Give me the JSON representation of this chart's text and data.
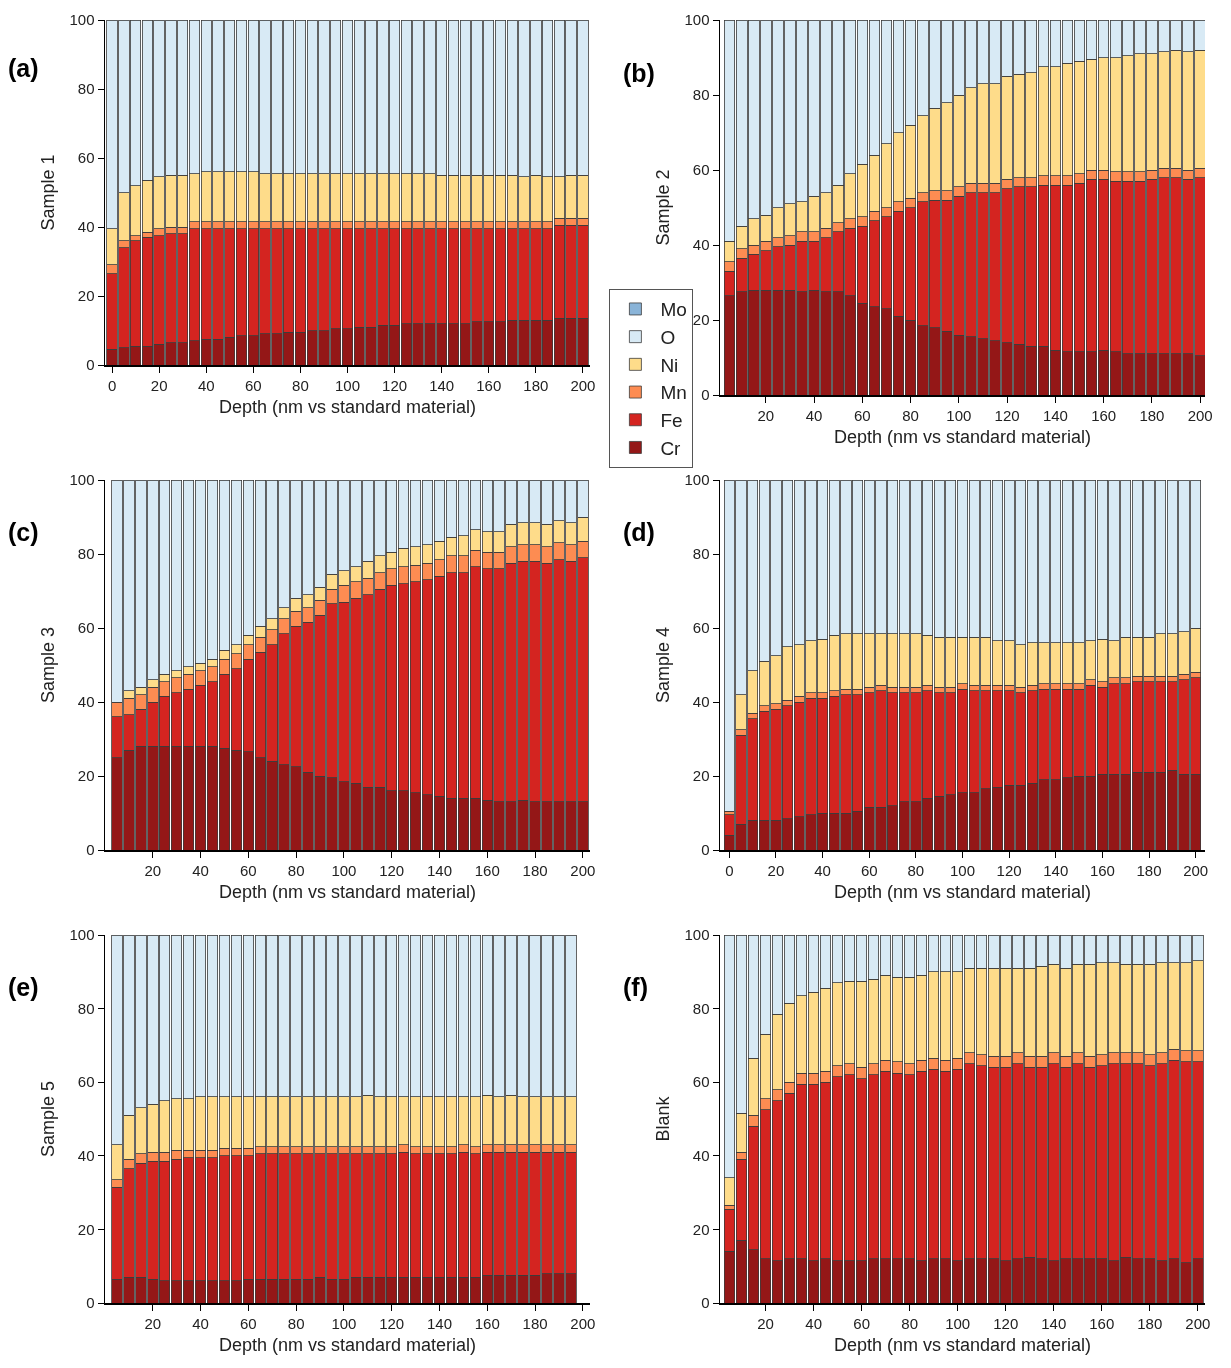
{
  "chart_data": [
    {
      "type": "bar",
      "stacked": true,
      "title": "(a)",
      "ylabel": "Sample 1",
      "xlabel": "Depth (nm vs standard material)",
      "legend": "right",
      "xlim": [
        -3,
        203
      ],
      "xticks": [
        0,
        20,
        40,
        60,
        80,
        100,
        120,
        140,
        160,
        180,
        200
      ],
      "ylim": [
        0,
        100
      ],
      "yticks": [
        0,
        20,
        40,
        60,
        80,
        100
      ],
      "x": [
        0,
        5,
        10,
        15,
        20,
        25,
        30,
        35,
        40,
        45,
        50,
        55,
        60,
        65,
        70,
        75,
        80,
        85,
        90,
        95,
        100,
        105,
        110,
        115,
        120,
        125,
        130,
        135,
        140,
        145,
        150,
        155,
        160,
        165,
        170,
        175,
        180,
        185,
        190,
        195,
        200
      ],
      "series": [
        {
          "name": "Cr",
          "color": "#941717",
          "values": [
            4.5,
            5,
            5.5,
            5.5,
            6,
            6.5,
            6.5,
            7,
            7.5,
            7.5,
            8,
            8.5,
            8.5,
            9,
            9,
            9.5,
            9.5,
            10,
            10,
            10.5,
            10.5,
            11,
            11,
            11.5,
            11.5,
            12,
            12,
            12,
            12,
            12,
            12,
            12.5,
            12.5,
            12.5,
            13,
            13,
            13,
            13,
            13.5,
            13.5,
            13.5
          ]
        },
        {
          "name": "Fe",
          "color": "#d42420",
          "values": [
            22,
            29,
            30.5,
            31.5,
            31.5,
            31.5,
            31.5,
            32.5,
            32,
            32,
            31.5,
            31,
            31,
            30.5,
            30.5,
            30,
            30,
            29.5,
            29.5,
            29,
            29,
            28.5,
            28.5,
            28,
            28,
            27.5,
            27.5,
            27.5,
            27.5,
            27.5,
            27.5,
            27,
            27,
            27,
            26.5,
            26.5,
            26.5,
            26.5,
            27,
            27,
            27
          ]
        },
        {
          "name": "Mn",
          "color": "#fd8c52",
          "values": [
            2.5,
            2,
            1.5,
            1.5,
            2,
            2,
            2,
            2,
            2,
            2,
            2,
            2,
            2,
            2,
            2,
            2,
            2,
            2,
            2,
            2,
            2,
            2,
            2,
            2,
            2,
            2,
            2,
            2,
            2,
            2,
            2,
            2,
            2,
            2,
            2,
            2,
            2,
            2,
            2,
            2,
            2
          ]
        },
        {
          "name": "Ni",
          "color": "#fedc8a",
          "values": [
            10.5,
            14,
            14.5,
            15,
            15,
            15,
            15,
            14,
            14.5,
            14.5,
            14.5,
            14.5,
            14.5,
            14,
            14,
            14,
            14,
            14,
            14,
            14,
            14,
            14,
            14,
            14,
            14,
            14,
            14,
            14,
            13.5,
            13.5,
            13.5,
            13.5,
            13.5,
            13.5,
            13.5,
            13,
            13.5,
            13,
            12,
            12.5,
            12.5
          ]
        },
        {
          "name": "O",
          "color": "#d8eaf5",
          "values": [
            60.5,
            50,
            48,
            46.5,
            45.5,
            45,
            45,
            44.5,
            44,
            44,
            44,
            44,
            44,
            44.5,
            44.5,
            44.5,
            44.5,
            44.5,
            44.5,
            44.5,
            44.5,
            44.5,
            44.5,
            44.5,
            44.5,
            44.5,
            44.5,
            44.5,
            45,
            45,
            45,
            45,
            45,
            45,
            45,
            45.5,
            45,
            45.5,
            45.5,
            45,
            45
          ]
        },
        {
          "name": "Mo",
          "color": "#8ab4d8",
          "values": [
            null,
            null,
            null,
            null,
            null,
            null,
            null,
            null,
            null,
            null,
            null,
            null,
            null,
            null,
            null,
            null,
            null,
            null,
            null,
            null,
            null,
            null,
            null,
            null,
            null,
            null,
            null,
            null,
            null,
            null,
            null,
            null,
            null,
            null,
            null,
            null,
            null,
            null,
            null,
            null,
            null
          ]
        }
      ]
    },
    {
      "type": "bar",
      "stacked": true,
      "title": "(b)",
      "ylabel": "Sample 2",
      "xlabel": "Depth (nm vs standard material)",
      "xlim": [
        1,
        202
      ],
      "xticks": [
        20,
        40,
        60,
        80,
        100,
        120,
        140,
        160,
        180,
        200
      ],
      "ylim": [
        0,
        100
      ],
      "yticks": [
        0,
        20,
        40,
        60,
        80,
        100
      ],
      "x": [
        5,
        10,
        15,
        20,
        25,
        30,
        35,
        40,
        45,
        50,
        55,
        60,
        65,
        70,
        75,
        80,
        85,
        90,
        95,
        100,
        105,
        110,
        115,
        120,
        125,
        130,
        135,
        140,
        145,
        150,
        155,
        160,
        165,
        170,
        175,
        180,
        185,
        190,
        195,
        200
      ],
      "series": [
        {
          "color": "#941717",
          "values": [
            26.5,
            27.5,
            28,
            28,
            28,
            28,
            27.5,
            28,
            27.5,
            27.5,
            26.5,
            24.5,
            23.5,
            23,
            21,
            20,
            18.5,
            18,
            17,
            16,
            15.5,
            15,
            14.5,
            14,
            13.5,
            13,
            13,
            12,
            11.5,
            11.5,
            11.5,
            12,
            11.5,
            11,
            11,
            11,
            11,
            11,
            11,
            10.5
          ]
        },
        {
          "color": "#d42420",
          "values": [
            6.5,
            9,
            9.5,
            10.5,
            11.5,
            12,
            13.5,
            13,
            14.5,
            16,
            18,
            20.5,
            23,
            24.5,
            28,
            30,
            33,
            34,
            35,
            37,
            38.5,
            39,
            39.5,
            41,
            42,
            42.5,
            43,
            44,
            44.5,
            45,
            46,
            45.5,
            45.5,
            46,
            46,
            46.5,
            47,
            47,
            46.5,
            47.5
          ]
        },
        {
          "color": "#fd8c52",
          "values": [
            2.5,
            2.5,
            2.5,
            2.5,
            2.5,
            2.5,
            2.5,
            2.5,
            2.5,
            2.5,
            2.5,
            2.5,
            2.5,
            2.5,
            2.5,
            2.5,
            2.5,
            2.5,
            2.5,
            2.5,
            2.5,
            2.5,
            2.5,
            2.5,
            2.5,
            2.5,
            2.5,
            2.5,
            2.5,
            2.5,
            2.5,
            2.5,
            2.5,
            2.5,
            2.5,
            2.5,
            2.5,
            2.5,
            2.5,
            2.5
          ]
        },
        {
          "color": "#fedc8a",
          "values": [
            5.5,
            6,
            7,
            7,
            8,
            8.5,
            8,
            9.5,
            9.5,
            10,
            12,
            14,
            15,
            17,
            18.5,
            19.5,
            20.5,
            22,
            23.5,
            24.5,
            25.5,
            26.5,
            26.5,
            27.5,
            27.5,
            28,
            29,
            29,
            30,
            30,
            29.5,
            30,
            30.5,
            31,
            31.5,
            31,
            31,
            31.5,
            31.5,
            31.5
          ]
        },
        {
          "color": "#d8eaf5",
          "values": [
            59,
            55,
            53,
            52,
            50,
            49,
            48.5,
            47,
            46,
            44,
            41,
            38.5,
            36,
            33,
            30,
            28,
            25.5,
            23.5,
            22,
            20,
            18,
            17,
            17,
            15,
            14.5,
            14,
            12.5,
            12.5,
            11.5,
            11,
            10.5,
            10,
            10,
            9.5,
            9,
            9,
            8.5,
            8,
            8.5,
            8
          ]
        }
      ]
    },
    {
      "type": "bar",
      "stacked": true,
      "title": "(c)",
      "ylabel": "Sample 3",
      "xlabel": "Depth (nm vs standard material)",
      "xlim": [
        0,
        203
      ],
      "xticks": [
        20,
        40,
        60,
        80,
        100,
        120,
        140,
        160,
        180,
        200
      ],
      "ylim": [
        0,
        100
      ],
      "yticks": [
        0,
        20,
        40,
        60,
        80,
        100
      ],
      "x": [
        5,
        10,
        15,
        20,
        25,
        30,
        35,
        40,
        45,
        50,
        55,
        60,
        65,
        70,
        75,
        80,
        85,
        90,
        95,
        100,
        105,
        110,
        115,
        120,
        125,
        130,
        135,
        140,
        145,
        150,
        155,
        160,
        165,
        170,
        175,
        180,
        185,
        190,
        195,
        200
      ],
      "series": [
        {
          "color": "#941717",
          "values": [
            25,
            27,
            28,
            28,
            28,
            28,
            28,
            28,
            28,
            27.5,
            27,
            26.5,
            25,
            24,
            23,
            22.5,
            21,
            20,
            19.5,
            18.5,
            18,
            17,
            17,
            16,
            16,
            15.5,
            15,
            14.5,
            14,
            14,
            14,
            13.5,
            13,
            13,
            13.5,
            13,
            13,
            13,
            13,
            13
          ]
        },
        {
          "color": "#d42420",
          "values": [
            11,
            9.5,
            10,
            12,
            13.5,
            14.5,
            15.5,
            16.5,
            17.5,
            20,
            22,
            25,
            28.5,
            31.5,
            35.5,
            38,
            40.5,
            43.5,
            47,
            48.5,
            50,
            52,
            53.5,
            55.5,
            56,
            57,
            58,
            59.5,
            61,
            61,
            62.5,
            62.5,
            63,
            64.5,
            64.5,
            65,
            64.5,
            65.5,
            65,
            66
          ]
        },
        {
          "color": "#fd8c52",
          "values": [
            4,
            4.5,
            4,
            4,
            4,
            4,
            4,
            4,
            4,
            4,
            4,
            4,
            4,
            4,
            4,
            4,
            4,
            4,
            4,
            4.5,
            4.5,
            4.5,
            4.5,
            4.5,
            4.5,
            4.5,
            4.5,
            4.5,
            4.5,
            4.5,
            4.5,
            4.5,
            4.5,
            4.5,
            4.5,
            4.5,
            4.5,
            4.5,
            4.5,
            4.5
          ]
        },
        {
          "color": "#fedc8a",
          "values": [
            null,
            2,
            2,
            2,
            2,
            2,
            2,
            2,
            2,
            2.5,
            2.5,
            2.5,
            3,
            3,
            3,
            3.5,
            3.5,
            3.5,
            4,
            4,
            4,
            4.5,
            4.5,
            4.5,
            5,
            5,
            5,
            5,
            5,
            5.5,
            5.5,
            5.5,
            5.5,
            6,
            6,
            6,
            6,
            6,
            6,
            6.5
          ]
        },
        {
          "color": "#d8eaf5",
          "values": [
            60,
            57,
            56,
            54,
            52.5,
            51.5,
            50.5,
            49.5,
            48.5,
            46,
            44.5,
            42,
            39.5,
            37.5,
            34.5,
            32,
            31,
            29,
            25.5,
            24.5,
            23.5,
            22,
            20.5,
            19.5,
            18.5,
            18,
            17.5,
            16.5,
            15.5,
            15,
            13.5,
            14,
            14,
            12,
            11.5,
            11.5,
            12,
            11,
            11.5,
            10
          ]
        }
      ]
    },
    {
      "type": "bar",
      "stacked": true,
      "title": "(d)",
      "ylabel": "Sample 4",
      "xlabel": "Depth (nm vs standard material)",
      "xlim": [
        -4,
        204
      ],
      "xticks": [
        0,
        20,
        40,
        60,
        80,
        100,
        120,
        140,
        160,
        180,
        200
      ],
      "ylim": [
        0,
        100
      ],
      "yticks": [
        0,
        20,
        40,
        60,
        80,
        100
      ],
      "x": [
        0,
        5,
        10,
        15,
        20,
        25,
        30,
        35,
        40,
        45,
        50,
        55,
        60,
        65,
        70,
        75,
        80,
        85,
        90,
        95,
        100,
        105,
        110,
        115,
        120,
        125,
        130,
        135,
        140,
        145,
        150,
        155,
        160,
        165,
        170,
        175,
        180,
        185,
        190,
        195,
        200
      ],
      "series": [
        {
          "color": "#941717",
          "values": [
            4,
            7,
            8,
            8,
            8,
            8.5,
            9,
            9.5,
            10,
            10,
            10,
            10.5,
            11.5,
            11.5,
            12,
            13,
            13,
            14,
            14.5,
            15,
            15.5,
            15.5,
            16.5,
            17,
            17.5,
            17.5,
            18,
            19,
            19,
            19.5,
            20,
            20,
            20.5,
            20.5,
            20.5,
            21,
            21,
            21,
            21.5,
            20.5,
            20.5
          ]
        },
        {
          "color": "#d42420",
          "values": [
            5.5,
            24,
            27.5,
            29.5,
            30,
            30.5,
            31,
            31.5,
            31,
            31.5,
            32,
            31.5,
            31,
            31.5,
            30.5,
            29.5,
            29.5,
            29,
            28,
            27.5,
            28,
            27.5,
            26.5,
            26,
            25.5,
            25,
            25,
            24.5,
            24.5,
            24,
            23.5,
            24.5,
            23.5,
            24.5,
            24.5,
            24.5,
            24.5,
            24.5,
            24,
            25.5,
            26
          ]
        },
        {
          "color": "#fd8c52",
          "values": [
            1,
            1.5,
            1.5,
            1.5,
            1.5,
            1.5,
            1.5,
            1.5,
            1.5,
            1.5,
            1.5,
            1.5,
            1.5,
            1.5,
            1.5,
            1.5,
            1.5,
            1.5,
            1.5,
            1.5,
            1.5,
            1.5,
            1.5,
            1.5,
            1.5,
            1.5,
            1.5,
            1.5,
            1.5,
            1.5,
            1.5,
            1.5,
            1.5,
            1.5,
            1.5,
            1.5,
            1.5,
            1.5,
            1.5,
            1.5,
            1.5
          ]
        },
        {
          "color": "#fedc8a",
          "values": [
            null,
            9.5,
            11.5,
            12,
            13,
            14.5,
            14,
            14,
            14.5,
            15,
            15,
            15,
            14.5,
            14,
            14.5,
            14.5,
            14.5,
            13.5,
            13.5,
            13.5,
            12.5,
            13,
            13,
            12,
            12,
            11.5,
            11.5,
            11,
            11,
            11,
            11,
            10.5,
            11.5,
            10,
            11,
            10.5,
            10.5,
            11.5,
            11.5,
            11.5,
            12
          ]
        },
        {
          "color": "#d8eaf5",
          "values": [
            89.5,
            58,
            51.5,
            49,
            47.5,
            45,
            44.5,
            43.5,
            43,
            42,
            41.5,
            41.5,
            41.5,
            41.5,
            41.5,
            41.5,
            41.5,
            42,
            42.5,
            42.5,
            42.5,
            42.5,
            42.5,
            43.5,
            43.5,
            44.5,
            44,
            44,
            44,
            44,
            44,
            43.5,
            43,
            43.5,
            42.5,
            42.5,
            42.5,
            41.5,
            41.5,
            41,
            40
          ]
        }
      ]
    },
    {
      "type": "bar",
      "stacked": true,
      "title": "(e)",
      "ylabel": "Sample 5",
      "xlabel": "Depth (nm vs standard material)",
      "xlim": [
        0,
        203
      ],
      "xticks": [
        20,
        40,
        60,
        80,
        100,
        120,
        140,
        160,
        180,
        200
      ],
      "ylim": [
        0,
        100
      ],
      "yticks": [
        0,
        20,
        40,
        60,
        80,
        100
      ],
      "x": [
        5,
        10,
        15,
        20,
        25,
        30,
        35,
        40,
        45,
        50,
        55,
        60,
        65,
        70,
        75,
        80,
        85,
        90,
        95,
        100,
        105,
        110,
        115,
        120,
        125,
        130,
        135,
        140,
        145,
        150,
        155,
        160,
        165,
        170,
        175,
        180,
        185,
        190,
        195
      ],
      "series": [
        {
          "color": "#941717",
          "values": [
            6.5,
            7,
            7,
            6.5,
            6,
            6,
            6,
            6,
            6,
            6,
            6,
            6.5,
            6.5,
            6.5,
            6.5,
            6.5,
            6.5,
            7,
            6.5,
            6.5,
            7,
            7,
            7,
            7,
            7,
            7,
            7,
            7,
            7,
            7,
            7,
            7.5,
            7.5,
            7.5,
            7.5,
            7.5,
            8,
            8,
            8
          ]
        },
        {
          "color": "#d42420",
          "values": [
            25,
            29.5,
            31,
            32,
            32.5,
            33,
            33.5,
            33.5,
            33.5,
            34,
            34,
            33.5,
            34,
            34,
            34,
            34,
            34,
            33.5,
            34,
            34,
            33.5,
            33.5,
            33.5,
            33.5,
            34,
            33.5,
            33.5,
            33.5,
            33.5,
            34,
            33.5,
            33.5,
            33.5,
            33.5,
            33.5,
            33.5,
            33,
            33,
            33
          ]
        },
        {
          "color": "#fd8c52",
          "values": [
            2,
            2.5,
            2.5,
            2.5,
            2.5,
            2.5,
            2,
            2,
            2,
            2,
            2,
            2,
            2,
            2,
            2,
            2,
            2,
            2,
            2,
            2,
            2,
            2,
            2,
            2,
            2,
            2,
            2,
            2,
            2,
            2,
            2,
            2,
            2,
            2,
            2,
            2,
            2,
            2,
            2
          ]
        },
        {
          "color": "#fedc8a",
          "values": [
            9.5,
            12,
            12.5,
            13,
            14,
            14,
            14,
            14.5,
            14.5,
            14,
            14,
            14,
            13.5,
            13.5,
            13.5,
            13.5,
            13.5,
            13.5,
            13.5,
            13.5,
            13.5,
            14,
            13.5,
            13.5,
            13,
            13.5,
            13.5,
            13.5,
            13.5,
            13,
            13.5,
            13.5,
            13,
            13.5,
            13,
            13,
            13,
            13,
            13
          ]
        },
        {
          "color": "#d8eaf5",
          "values": [
            57,
            49,
            47,
            46,
            45,
            44.5,
            44.5,
            44,
            44,
            44,
            44,
            44,
            44,
            44,
            44,
            44,
            44,
            44,
            44,
            44,
            44,
            43.5,
            44,
            44,
            44,
            44,
            44,
            44,
            44,
            44,
            44,
            43.5,
            44,
            43.5,
            44,
            44,
            44,
            44,
            44
          ]
        }
      ]
    },
    {
      "type": "bar",
      "stacked": true,
      "title": "(f)",
      "ylabel": "Blank",
      "xlabel": "Depth (nm vs standard material)",
      "xlim": [
        1,
        203
      ],
      "xticks": [
        20,
        40,
        60,
        80,
        100,
        120,
        140,
        160,
        180,
        200
      ],
      "ylim": [
        0,
        100
      ],
      "yticks": [
        0,
        20,
        40,
        60,
        80,
        100
      ],
      "x": [
        5,
        10,
        15,
        20,
        25,
        30,
        35,
        40,
        45,
        50,
        55,
        60,
        65,
        70,
        75,
        80,
        85,
        90,
        95,
        100,
        105,
        110,
        115,
        120,
        125,
        130,
        135,
        140,
        145,
        150,
        155,
        160,
        165,
        170,
        175,
        180,
        185,
        190,
        195,
        200
      ],
      "series": [
        {
          "color": "#941717",
          "values": [
            14,
            17,
            14.5,
            12,
            11.5,
            12,
            12,
            11.5,
            12,
            11.5,
            11.5,
            11.5,
            12,
            12,
            12,
            12,
            11.5,
            12,
            12,
            11.5,
            12,
            12,
            12,
            11.5,
            12,
            12.5,
            12,
            11.5,
            12,
            12,
            12,
            12,
            11.5,
            12.5,
            12,
            12,
            11.5,
            12,
            11,
            12
          ]
        },
        {
          "color": "#d42420",
          "values": [
            11.5,
            22,
            33.5,
            40.5,
            43.5,
            45,
            47.5,
            48,
            48,
            50,
            50.5,
            49.5,
            50,
            51,
            50.5,
            50,
            51.5,
            51.5,
            51,
            52,
            53,
            52.5,
            52,
            52.5,
            53,
            51.5,
            52,
            53.5,
            52,
            53,
            52,
            52.5,
            53.5,
            52.5,
            53,
            52.5,
            53.5,
            54,
            54.5,
            53.5
          ]
        },
        {
          "color": "#fd8c52",
          "values": [
            1,
            2,
            3,
            3,
            3,
            3,
            3,
            3,
            3,
            3,
            3,
            3,
            3,
            3,
            3,
            3,
            3,
            3,
            3,
            3,
            3,
            3,
            3,
            3,
            3,
            3,
            3,
            3,
            3,
            3,
            3,
            3,
            3,
            3,
            3,
            3,
            3,
            3,
            3,
            3
          ]
        },
        {
          "color": "#fedc8a",
          "values": [
            7.5,
            10.5,
            15.5,
            17.5,
            20.5,
            21.5,
            21,
            22,
            22.5,
            22.5,
            22.5,
            23.5,
            23,
            23,
            23,
            23.5,
            23,
            23.5,
            24,
            23.5,
            23,
            23.5,
            24,
            24,
            23,
            24,
            24.5,
            24,
            24,
            24,
            25,
            25,
            24.5,
            24,
            24,
            24.5,
            24.5,
            23.5,
            24,
            24.5
          ]
        },
        {
          "color": "#d8eaf5",
          "values": [
            66,
            48.5,
            33.5,
            27,
            21.5,
            18.5,
            16.5,
            15.5,
            14.5,
            13,
            12.5,
            12.5,
            12,
            11,
            11.5,
            11.5,
            11,
            10,
            10,
            10,
            9,
            9,
            9,
            9,
            9,
            9,
            8.5,
            8,
            9,
            8,
            8,
            7.5,
            7.5,
            8,
            8,
            8,
            7.5,
            7.5,
            7.5,
            7
          ]
        }
      ]
    }
  ]
}
